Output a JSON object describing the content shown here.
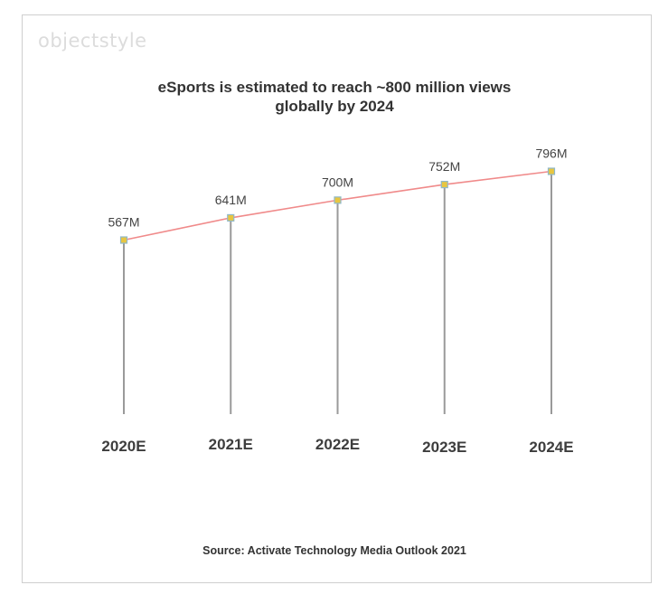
{
  "logo": {
    "text": "objectstyle"
  },
  "colors": {
    "line": "#f08a8a",
    "stem": "#9a9a9a",
    "marker_fill": "#e8c640",
    "marker_stroke": "#8fb8c8"
  },
  "chart_data": {
    "type": "line",
    "title": "eSports is estimated to reach ~800 million views globally by 2024",
    "title_lines": [
      "eSports is estimated to reach ~800 million views",
      "globally by 2024"
    ],
    "categories": [
      "2020E",
      "2021E",
      "2022E",
      "2023E",
      "2024E"
    ],
    "series": [
      {
        "values": [
          567,
          641,
          700,
          752,
          796
        ],
        "labels": [
          "567M",
          "641M",
          "700M",
          "752M",
          "796M"
        ]
      }
    ],
    "xlabel": "",
    "ylabel": "",
    "grid": false,
    "legend": "none",
    "source": "Source: Activate Technology Media Outlook 2021"
  }
}
